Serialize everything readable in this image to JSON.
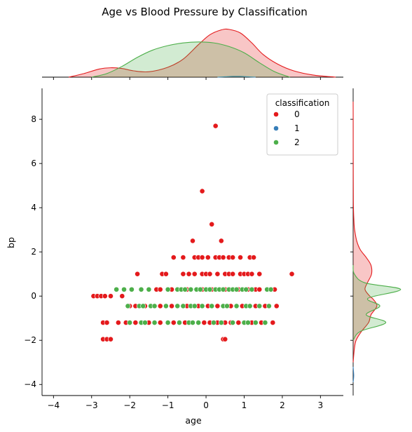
{
  "chart_data": {
    "type": "scatter",
    "title": "Age vs Blood Pressure by Classification",
    "xlabel": "age",
    "ylabel": "bp",
    "xlim": [
      -4.3,
      3.6
    ],
    "ylim": [
      -4.5,
      9.4
    ],
    "xticks": [
      -4,
      -3,
      -2,
      -1,
      0,
      1,
      2,
      3
    ],
    "yticks": [
      -4,
      -2,
      0,
      2,
      4,
      6,
      8
    ],
    "grid": false,
    "legend": {
      "title": "classification",
      "placement": "top-right"
    },
    "series": [
      {
        "name": "0",
        "color": "#e41a1c",
        "points": [
          [
            0.25,
            7.7
          ],
          [
            -0.1,
            4.75
          ],
          [
            0.15,
            3.25
          ],
          [
            -0.35,
            2.5
          ],
          [
            0.4,
            2.5
          ],
          [
            -0.85,
            1.75
          ],
          [
            -0.6,
            1.75
          ],
          [
            -0.3,
            1.75
          ],
          [
            -0.2,
            1.75
          ],
          [
            -0.1,
            1.75
          ],
          [
            0.05,
            1.75
          ],
          [
            0.25,
            1.75
          ],
          [
            0.35,
            1.75
          ],
          [
            0.45,
            1.75
          ],
          [
            0.6,
            1.75
          ],
          [
            0.7,
            1.75
          ],
          [
            0.9,
            1.75
          ],
          [
            1.15,
            1.75
          ],
          [
            1.25,
            1.75
          ],
          [
            -1.8,
            1.0
          ],
          [
            -1.15,
            1.0
          ],
          [
            -1.05,
            1.0
          ],
          [
            -0.6,
            1.0
          ],
          [
            -0.45,
            1.0
          ],
          [
            -0.3,
            1.0
          ],
          [
            -0.1,
            1.0
          ],
          [
            0.0,
            1.0
          ],
          [
            0.1,
            1.0
          ],
          [
            0.3,
            1.0
          ],
          [
            0.5,
            1.0
          ],
          [
            0.6,
            1.0
          ],
          [
            0.7,
            1.0
          ],
          [
            0.9,
            1.0
          ],
          [
            1.0,
            1.0
          ],
          [
            1.1,
            1.0
          ],
          [
            1.2,
            1.0
          ],
          [
            1.4,
            1.0
          ],
          [
            2.25,
            1.0
          ],
          [
            -1.3,
            0.3
          ],
          [
            -1.2,
            0.3
          ],
          [
            -0.9,
            0.3
          ],
          [
            -0.5,
            0.3
          ],
          [
            -0.1,
            0.3
          ],
          [
            0.15,
            0.3
          ],
          [
            0.5,
            0.3
          ],
          [
            0.85,
            0.3
          ],
          [
            1.1,
            0.3
          ],
          [
            1.3,
            0.3
          ],
          [
            1.4,
            0.3
          ],
          [
            1.8,
            0.3
          ],
          [
            -2.95,
            0.0
          ],
          [
            -2.85,
            0.0
          ],
          [
            -2.75,
            0.0
          ],
          [
            -2.65,
            0.0
          ],
          [
            -2.5,
            0.0
          ],
          [
            -2.2,
            0.0
          ],
          [
            -2.0,
            -0.45
          ],
          [
            -1.85,
            -0.45
          ],
          [
            -1.6,
            -0.45
          ],
          [
            -1.2,
            -0.45
          ],
          [
            -0.9,
            -0.45
          ],
          [
            -0.5,
            -0.45
          ],
          [
            -0.2,
            -0.45
          ],
          [
            0.05,
            -0.45
          ],
          [
            0.3,
            -0.45
          ],
          [
            0.65,
            -0.45
          ],
          [
            0.95,
            -0.45
          ],
          [
            1.3,
            -0.45
          ],
          [
            1.55,
            -0.45
          ],
          [
            1.85,
            -0.45
          ],
          [
            -2.7,
            -1.2
          ],
          [
            -2.6,
            -1.2
          ],
          [
            -2.3,
            -1.2
          ],
          [
            -2.1,
            -1.2
          ],
          [
            -1.85,
            -1.2
          ],
          [
            -1.5,
            -1.2
          ],
          [
            -1.2,
            -1.2
          ],
          [
            -0.85,
            -1.2
          ],
          [
            -0.55,
            -1.2
          ],
          [
            -0.05,
            -1.2
          ],
          [
            0.1,
            -1.2
          ],
          [
            0.3,
            -1.2
          ],
          [
            0.5,
            -1.2
          ],
          [
            0.65,
            -1.2
          ],
          [
            0.85,
            -1.2
          ],
          [
            1.2,
            -1.2
          ],
          [
            1.45,
            -1.2
          ],
          [
            1.75,
            -1.2
          ],
          [
            -2.7,
            -1.95
          ],
          [
            -2.6,
            -1.95
          ],
          [
            -2.5,
            -1.95
          ],
          [
            0.45,
            -1.95
          ],
          [
            0.5,
            -1.95
          ]
        ]
      },
      {
        "name": "1",
        "color": "#377eb8",
        "points": []
      },
      {
        "name": "2",
        "color": "#4daf4a",
        "points": [
          [
            -2.35,
            0.3
          ],
          [
            -2.15,
            0.3
          ],
          [
            -1.95,
            0.3
          ],
          [
            -1.7,
            0.3
          ],
          [
            -1.5,
            0.3
          ],
          [
            -1.0,
            0.3
          ],
          [
            -0.75,
            0.3
          ],
          [
            -0.65,
            0.3
          ],
          [
            -0.55,
            0.3
          ],
          [
            -0.4,
            0.3
          ],
          [
            -0.25,
            0.3
          ],
          [
            -0.15,
            0.3
          ],
          [
            0.0,
            0.3
          ],
          [
            0.1,
            0.3
          ],
          [
            0.25,
            0.3
          ],
          [
            0.35,
            0.3
          ],
          [
            0.45,
            0.3
          ],
          [
            0.6,
            0.3
          ],
          [
            0.7,
            0.3
          ],
          [
            0.8,
            0.3
          ],
          [
            0.95,
            0.3
          ],
          [
            1.05,
            0.3
          ],
          [
            1.2,
            0.3
          ],
          [
            1.6,
            0.3
          ],
          [
            1.7,
            0.3
          ],
          [
            -2.05,
            -0.45
          ],
          [
            -1.75,
            -0.45
          ],
          [
            -1.65,
            -0.45
          ],
          [
            -1.45,
            -0.45
          ],
          [
            -1.35,
            -0.45
          ],
          [
            -1.05,
            -0.45
          ],
          [
            -0.75,
            -0.45
          ],
          [
            -0.6,
            -0.45
          ],
          [
            -0.4,
            -0.45
          ],
          [
            -0.3,
            -0.45
          ],
          [
            -0.1,
            -0.45
          ],
          [
            0.15,
            -0.45
          ],
          [
            0.45,
            -0.45
          ],
          [
            0.55,
            -0.45
          ],
          [
            0.8,
            -0.45
          ],
          [
            1.05,
            -0.45
          ],
          [
            1.15,
            -0.45
          ],
          [
            1.4,
            -0.45
          ],
          [
            1.65,
            -0.45
          ],
          [
            -2.0,
            -1.2
          ],
          [
            -1.7,
            -1.2
          ],
          [
            -1.6,
            -1.2
          ],
          [
            -1.35,
            -1.2
          ],
          [
            -1.0,
            -1.2
          ],
          [
            -0.7,
            -1.2
          ],
          [
            -0.45,
            -1.2
          ],
          [
            -0.35,
            -1.2
          ],
          [
            -0.2,
            -1.2
          ],
          [
            0.2,
            -1.2
          ],
          [
            0.4,
            -1.2
          ],
          [
            0.7,
            -1.2
          ],
          [
            1.0,
            -1.2
          ],
          [
            1.1,
            -1.2
          ],
          [
            1.3,
            -1.2
          ],
          [
            1.55,
            -1.2
          ]
        ]
      }
    ],
    "marginal_x": [
      {
        "series": "0",
        "x": [
          -3.6,
          -3.2,
          -2.8,
          -2.5,
          -2.2,
          -1.9,
          -1.5,
          -1.0,
          -0.6,
          -0.2,
          0.1,
          0.4,
          0.6,
          0.9,
          1.2,
          1.5,
          1.9,
          2.3,
          2.8,
          3.4
        ],
        "density": [
          0.0,
          0.02,
          0.045,
          0.052,
          0.048,
          0.035,
          0.03,
          0.055,
          0.1,
          0.18,
          0.235,
          0.262,
          0.265,
          0.245,
          0.19,
          0.125,
          0.07,
          0.035,
          0.012,
          0.0
        ]
      },
      {
        "series": "1",
        "x": [
          0.3,
          0.5,
          0.7,
          0.9,
          1.1,
          1.3
        ],
        "density": [
          0.0,
          0.002,
          0.004,
          0.004,
          0.002,
          0.0
        ]
      },
      {
        "series": "2",
        "x": [
          -3.0,
          -2.6,
          -2.2,
          -1.8,
          -1.4,
          -1.0,
          -0.6,
          -0.2,
          0.2,
          0.6,
          1.0,
          1.4,
          1.8,
          2.2
        ],
        "density": [
          0.0,
          0.02,
          0.06,
          0.11,
          0.15,
          0.175,
          0.19,
          0.195,
          0.19,
          0.17,
          0.135,
          0.08,
          0.03,
          0.0
        ]
      }
    ],
    "marginal_y": [
      {
        "series": "0",
        "y": [
          -3.0,
          -2.4,
          -2.0,
          -1.6,
          -1.2,
          -0.85,
          -0.45,
          -0.15,
          0.0,
          0.3,
          0.6,
          1.0,
          1.4,
          1.75,
          2.1,
          2.5,
          3.0,
          3.3,
          4.0,
          4.8,
          5.5,
          7.0,
          7.7,
          8.8
        ],
        "density": [
          0.0,
          0.02,
          0.05,
          0.14,
          0.26,
          0.3,
          0.4,
          0.34,
          0.28,
          0.2,
          0.24,
          0.31,
          0.3,
          0.22,
          0.12,
          0.06,
          0.025,
          0.015,
          0.005,
          0.003,
          0.002,
          0.001,
          0.001,
          0.0
        ]
      },
      {
        "series": "1",
        "y": [
          -3.9,
          -3.6,
          -3.2
        ],
        "density": [
          0.0,
          0.01,
          0.0
        ]
      },
      {
        "series": "2",
        "y": [
          -2.0,
          -1.6,
          -1.2,
          -0.85,
          -0.45,
          -0.1,
          0.3,
          0.6,
          1.0,
          1.4
        ],
        "density": [
          0.0,
          0.12,
          0.55,
          0.22,
          0.45,
          0.25,
          0.8,
          0.2,
          0.02,
          0.0
        ]
      }
    ]
  }
}
